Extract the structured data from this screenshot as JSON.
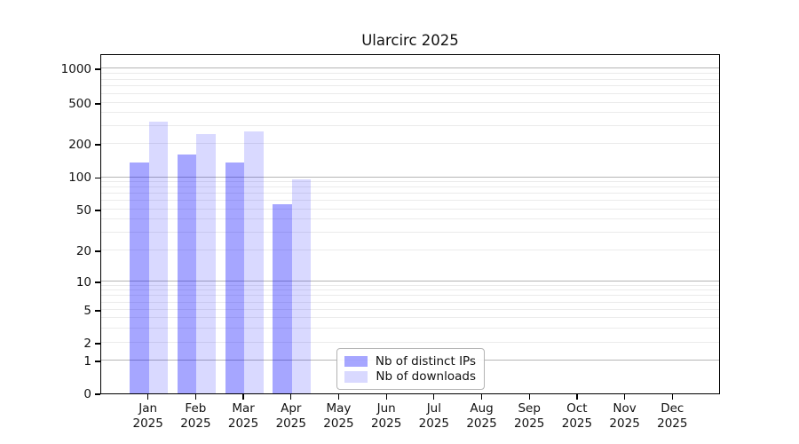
{
  "title": "Ularcirc 2025",
  "chart_data": {
    "type": "bar",
    "title": "Ularcirc 2025",
    "categories": [
      "Jan 2025",
      "Feb 2025",
      "Mar 2025",
      "Apr 2025",
      "May 2025",
      "Jun 2025",
      "Jul 2025",
      "Aug 2025",
      "Sep 2025",
      "Oct 2025",
      "Nov 2025",
      "Dec 2025"
    ],
    "series": [
      {
        "name": "Nb of distinct IPs",
        "color": "rgba(0,0,255,0.35)",
        "values": [
          136,
          160,
          136,
          56,
          null,
          null,
          null,
          null,
          null,
          null,
          null,
          null
        ]
      },
      {
        "name": "Nb of downloads",
        "color": "rgba(0,0,255,0.15)",
        "values": [
          330,
          250,
          265,
          95,
          null,
          null,
          null,
          null,
          null,
          null,
          null,
          null
        ]
      }
    ],
    "xlabel": "",
    "ylabel": "",
    "yscale": "symlog",
    "yticks": [
      0,
      1,
      2,
      5,
      10,
      20,
      50,
      100,
      200,
      500,
      1000
    ],
    "ylim": [
      0,
      1400
    ],
    "grid": "horizontal, log minor + major decade lines",
    "legend_position": "lower center",
    "colors": {
      "grid_major": "#b5b5b5",
      "grid_minor": "#ebebeb",
      "axis": "#000000",
      "background": "#ffffff"
    }
  }
}
